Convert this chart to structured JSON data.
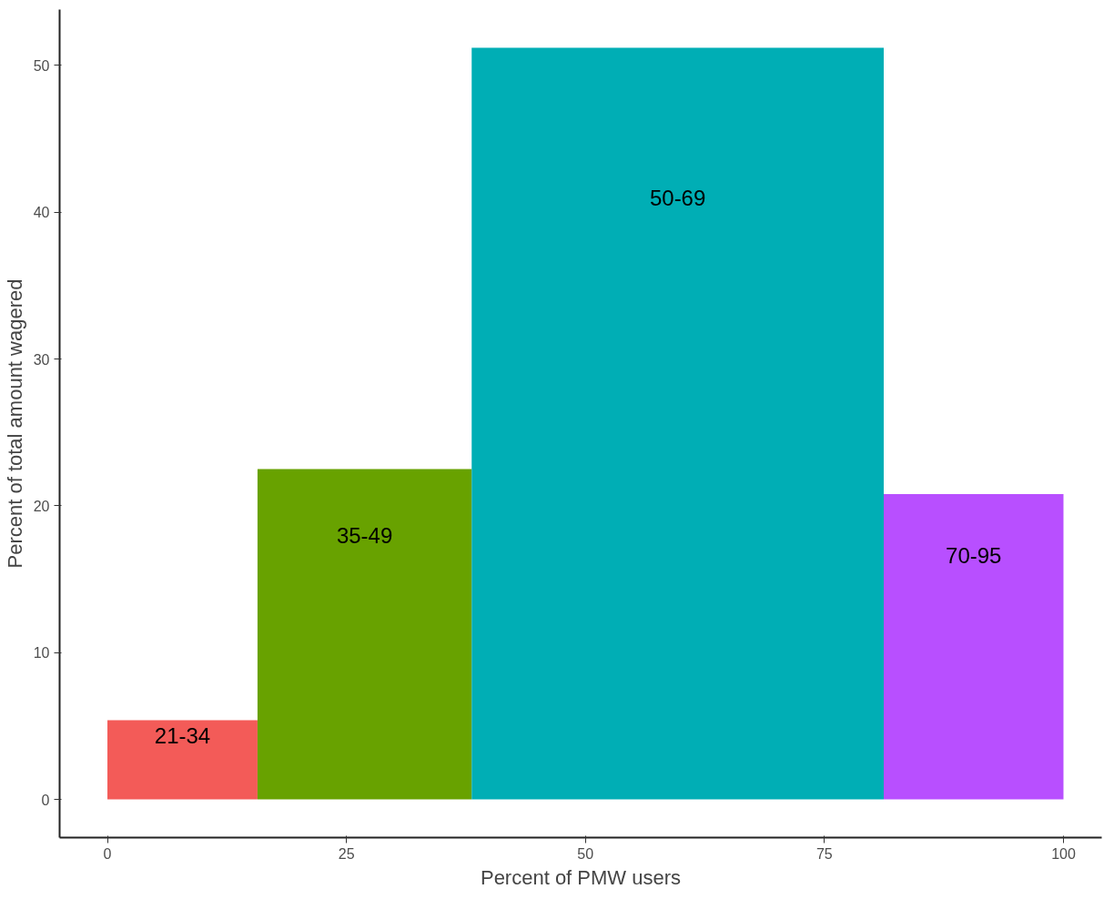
{
  "chart_data": {
    "type": "histogram",
    "xlabel": "Percent of PMW users",
    "ylabel": "Percent of total amount wagered",
    "bins": [
      0,
      15.7,
      38.1,
      81.2,
      100
    ],
    "values": [
      5.4,
      22.5,
      51.2,
      20.8
    ],
    "colors": [
      "#f35b58",
      "#68a200",
      "#00aeb5",
      "#b84fff"
    ],
    "xlim": [
      -5,
      104
    ],
    "ylim": [
      -2.6,
      53.8
    ],
    "xticks": [
      0,
      25,
      50,
      75,
      100
    ],
    "yticks": [
      0,
      10,
      20,
      30,
      40,
      50
    ],
    "value_labels": [
      "21-34",
      "35-49",
      "50-69",
      "70-95"
    ]
  }
}
